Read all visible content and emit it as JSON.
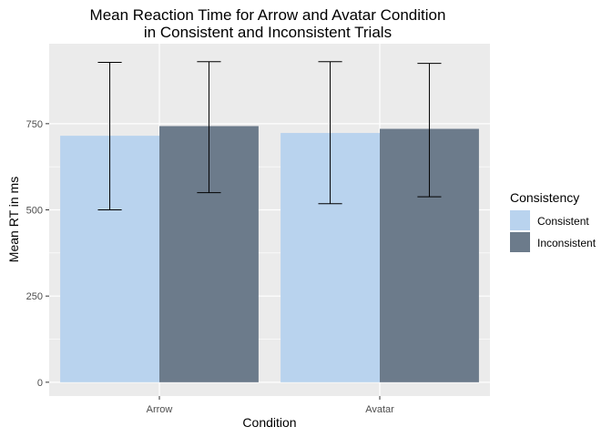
{
  "chart_data": {
    "type": "bar",
    "title": "Mean Reaction Time for Arrow and Avatar Condition",
    "subtitle": "in Consistent and Inconsistent Trials",
    "xlabel": "Condition",
    "ylabel": "Mean RT in ms",
    "categories": [
      "Arrow",
      "Avatar"
    ],
    "series": [
      {
        "name": "Consistent",
        "color": "#b9d3ee",
        "values": [
          715,
          723
        ],
        "err_low": [
          500,
          518
        ],
        "err_high": [
          928,
          930
        ]
      },
      {
        "name": "Inconsistent",
        "color": "#6c7b8b",
        "values": [
          743,
          735
        ],
        "err_low": [
          550,
          538
        ],
        "err_high": [
          930,
          925
        ]
      }
    ],
    "ylim": [
      -40,
      982
    ],
    "yticks": [
      0,
      250,
      500,
      750
    ],
    "ytick_labels": [
      "0",
      "250",
      "500",
      "750"
    ],
    "grid": true,
    "legend": {
      "title": "Consistency",
      "position": "right"
    }
  }
}
